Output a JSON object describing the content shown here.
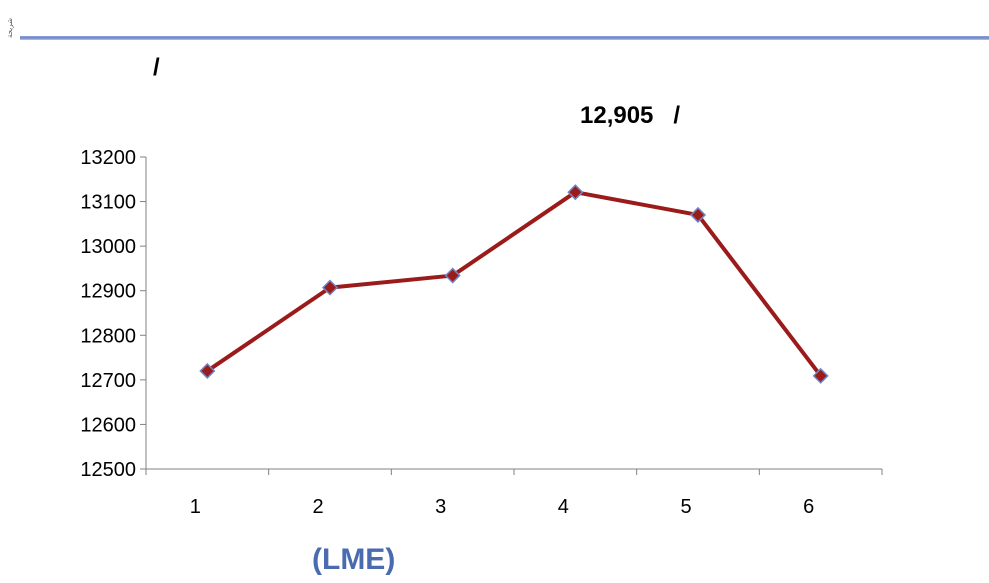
{
  "header": {
    "corner_text": "شريحة"
  },
  "subtitle": "/",
  "footer_label": "(LME)",
  "colors": {
    "line": "#9b1b1b",
    "marker_fill": "#9b1b1b",
    "marker_stroke": "#6f86c6",
    "axis": "#808080",
    "header_rule": "#6f86c6"
  },
  "chart_data": {
    "type": "line",
    "title": "12,905   /",
    "x": [
      1,
      2,
      3,
      4,
      5,
      6
    ],
    "categories": [
      "1",
      "2",
      "3",
      "4",
      "5",
      "6"
    ],
    "values": [
      12720,
      12907,
      12934,
      13121,
      13070,
      12709
    ],
    "ylim": [
      12500,
      13200
    ],
    "yticks": [
      12500,
      12600,
      12700,
      12800,
      12900,
      13000,
      13100,
      13200
    ],
    "ytick_labels": [
      "12500",
      "12600",
      "12700",
      "12800",
      "12900",
      "13000",
      "13100",
      "13200"
    ],
    "grid": false,
    "legend": "none",
    "marker": "diamond"
  }
}
